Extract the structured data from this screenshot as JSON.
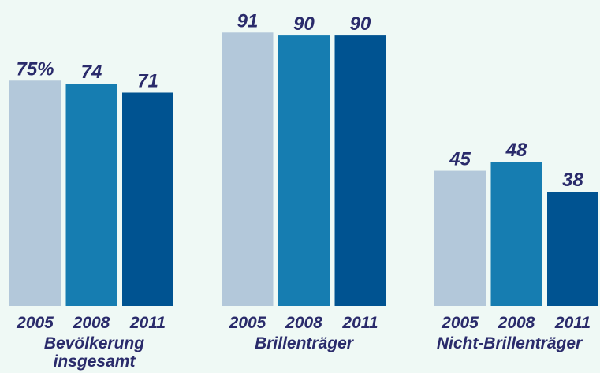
{
  "chart_data": {
    "type": "bar",
    "categories": [
      "Bevölkerung insgesamt",
      "Brillenträger",
      "Nicht-Brillenträger"
    ],
    "series": [
      {
        "name": "2005",
        "color": "#b3c8da",
        "values": [
          75,
          91,
          45
        ],
        "value_labels": [
          "75%",
          "91",
          "45"
        ]
      },
      {
        "name": "2008",
        "color": "#167db1",
        "values": [
          74,
          90,
          48
        ]
      },
      {
        "name": "2011",
        "color": "#005391",
        "values": [
          71,
          90,
          38
        ]
      }
    ],
    "ylim": [
      0,
      100
    ]
  }
}
